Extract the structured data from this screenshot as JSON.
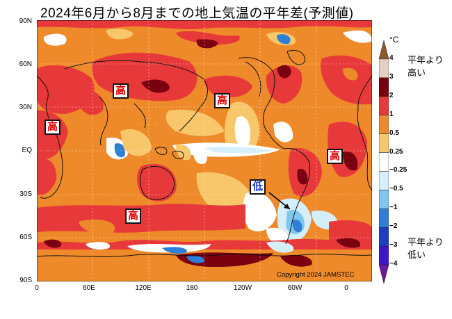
{
  "title": "2024年6月から8月までの地上気温の平年差(予測値)",
  "lat_labels": [
    "90N",
    "60N",
    "30N",
    "EQ",
    "30S",
    "60S",
    "90S"
  ],
  "lon_labels": [
    "0",
    "60E",
    "120E",
    "180",
    "120W",
    "60W",
    "0"
  ],
  "copyright": "Copyright 2024 JAMSTEC",
  "colorbar": {
    "unit": "°C",
    "ticks": [
      "4",
      "3",
      "2",
      "1",
      "0.5",
      "0.25",
      "−0.25",
      "−0.5",
      "−1",
      "−2",
      "−3",
      "−4"
    ],
    "colors": [
      "#8b5a2b",
      "#e6cfc4",
      "#7a0010",
      "#e8393a",
      "#ee8a2a",
      "#f8c76c",
      "#ffffff",
      "#d4effb",
      "#7fc6ee",
      "#2f7fd8",
      "#1e3ec8",
      "#3a18c8",
      "#6a1a9c"
    ],
    "high_label": "平年より\n高い",
    "low_label": "平年より\n低い"
  },
  "annotations": [
    {
      "text": "高",
      "type": "high"
    },
    {
      "text": "高",
      "type": "high"
    },
    {
      "text": "高",
      "type": "high"
    },
    {
      "text": "高",
      "type": "high"
    },
    {
      "text": "高",
      "type": "high"
    },
    {
      "text": "低",
      "type": "low"
    }
  ]
}
